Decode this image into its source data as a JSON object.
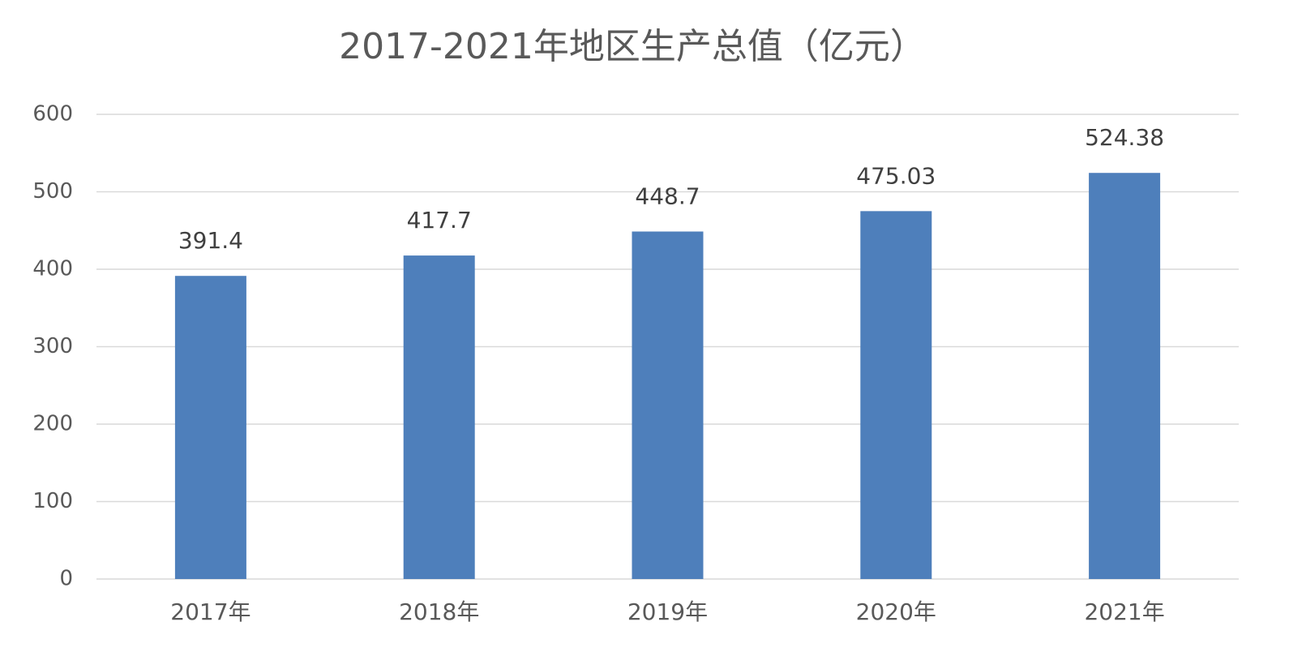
{
  "chart_data": {
    "type": "bar",
    "title": "2017-2021年地区生产总值（亿元）",
    "categories": [
      "2017年",
      "2018年",
      "2019年",
      "2020年",
      "2021年"
    ],
    "values": [
      391.4,
      417.7,
      448.7,
      475.03,
      524.38
    ],
    "color": "#4e7fbb",
    "ylim": [
      0,
      600
    ],
    "yticks": [
      0,
      100,
      200,
      300,
      400,
      500,
      600
    ],
    "grid": true
  }
}
